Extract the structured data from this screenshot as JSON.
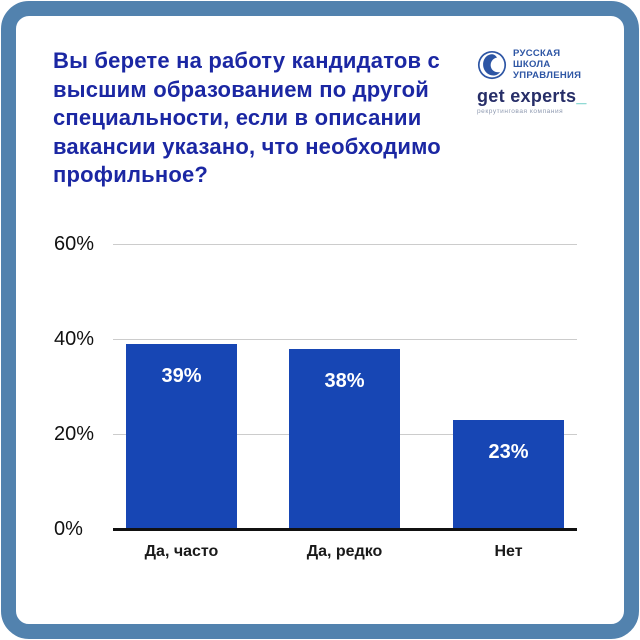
{
  "header": {
    "title": "Вы берете на работу кандидатов с высшим образованием по другой специальности, если в описании вакансии указано, что необходимо профильное?"
  },
  "logos": {
    "rsu": {
      "name": "Русская школа управления",
      "lines": [
        "РУССКАЯ",
        "ШКОЛА",
        "УПРАВЛЕНИЯ"
      ]
    },
    "get_experts": {
      "wordmark": "get experts",
      "underscore": "_",
      "tagline": "рекрутинговая компания"
    }
  },
  "chart_data": {
    "type": "bar",
    "title": "Вы берете на работу кандидатов с высшим образованием по другой специальности, если в описании вакансии указано, что необходимо профильное?",
    "categories": [
      "Да, часто",
      "Да, редко",
      "Нет"
    ],
    "values": [
      39,
      38,
      23
    ],
    "value_labels": [
      "39%",
      "38%",
      "23%"
    ],
    "yticks": [
      0,
      20,
      40,
      60
    ],
    "ytick_labels": [
      "0%",
      "20%",
      "40%",
      "60%"
    ],
    "ylim": [
      0,
      60
    ],
    "grid": true,
    "legend_position": "none",
    "xlabel": "",
    "ylabel": ""
  },
  "colors": {
    "frame": "#5282ae",
    "title_text": "#1b27a3",
    "bar": "#1746b4",
    "grid_line": "#cccccc",
    "axis_line": "#111111",
    "rsu_text": "#2d55a4",
    "get_experts_text": "#272e68",
    "accent_teal": "#39bdb3",
    "tagline_text": "#8f9ab1"
  }
}
